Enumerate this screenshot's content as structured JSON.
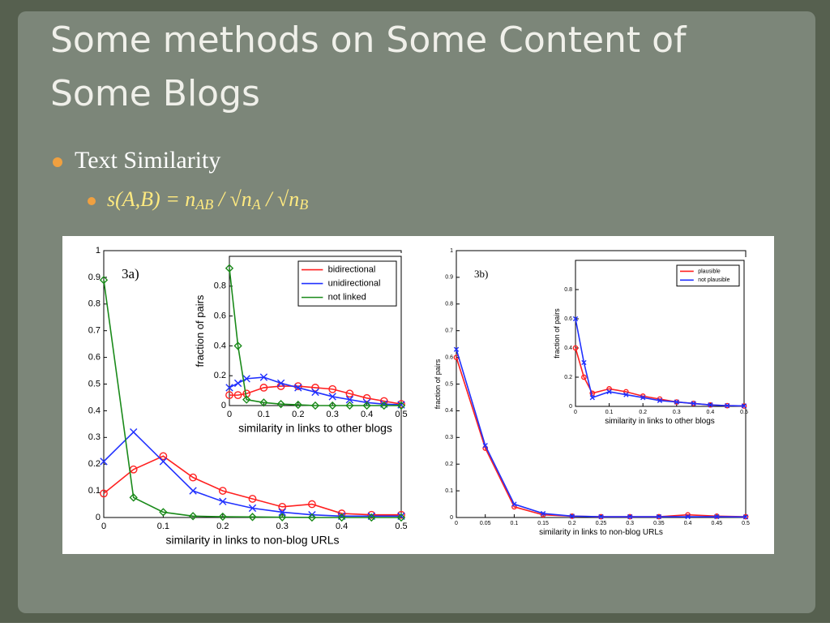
{
  "slide": {
    "title": "Some methods on Some Content of Some Blogs",
    "bullets": [
      "Text Similarity"
    ],
    "formula": [
      "s(A,B) = n",
      "AB",
      " / √n",
      "A",
      " / √n",
      "B"
    ]
  },
  "chart_data": [
    {
      "type": "line",
      "annotation": "3a)",
      "xlabel": "similarity in links to non-blog URLs",
      "xlim": [
        0,
        0.5
      ],
      "xticks": [
        0,
        0.1,
        0.2,
        0.3,
        0.4,
        0.5
      ],
      "ylim": [
        0,
        1
      ],
      "yticks": [
        0,
        0.1,
        0.2,
        0.3,
        0.4,
        0.5,
        0.6,
        0.7,
        0.8,
        0.9,
        1
      ],
      "x": [
        0,
        0.05,
        0.1,
        0.15,
        0.2,
        0.25,
        0.3,
        0.35,
        0.4,
        0.45,
        0.5
      ],
      "series": [
        {
          "color": "#ff2020",
          "marker": "o",
          "values": [
            0.09,
            0.18,
            0.23,
            0.15,
            0.1,
            0.07,
            0.04,
            0.05,
            0.015,
            0.01,
            0.01
          ]
        },
        {
          "color": "#2030ff",
          "marker": "x",
          "values": [
            0.21,
            0.32,
            0.21,
            0.1,
            0.06,
            0.035,
            0.02,
            0.01,
            0.005,
            0.005,
            0.005
          ]
        },
        {
          "color": "#1a8a1a",
          "marker": "d",
          "values": [
            0.89,
            0.075,
            0.02,
            0.005,
            0.003,
            0.002,
            0.001,
            0,
            0,
            0,
            0
          ]
        }
      ]
    },
    {
      "type": "line",
      "xlabel": "similarity in links to other blogs",
      "ylabel": "fraction of pairs",
      "xlim": [
        0,
        0.5
      ],
      "xticks": [
        0,
        0.1,
        0.2,
        0.3,
        0.4,
        0.5
      ],
      "ylim": [
        0,
        1
      ],
      "yticks": [
        0,
        0.2,
        0.4,
        0.6,
        0.8
      ],
      "x": [
        0,
        0.025,
        0.05,
        0.1,
        0.15,
        0.2,
        0.25,
        0.3,
        0.35,
        0.4,
        0.45,
        0.5
      ],
      "series": [
        {
          "name": "bidirectional",
          "color": "#ff2020",
          "marker": "o",
          "values": [
            0.07,
            0.07,
            0.08,
            0.12,
            0.13,
            0.13,
            0.12,
            0.11,
            0.08,
            0.05,
            0.03,
            0.01
          ]
        },
        {
          "name": "unidirectional",
          "color": "#2030ff",
          "marker": "x",
          "values": [
            0.12,
            0.15,
            0.18,
            0.19,
            0.15,
            0.12,
            0.09,
            0.06,
            0.04,
            0.02,
            0.01,
            0.005
          ]
        },
        {
          "name": "not linked",
          "color": "#1a8a1a",
          "marker": "d",
          "values": [
            0.92,
            0.4,
            0.04,
            0.02,
            0.01,
            0.005,
            0,
            0,
            0,
            0,
            0,
            0
          ]
        }
      ]
    },
    {
      "type": "line",
      "annotation": "3b)",
      "xlabel": "similarity in links to non-blog URLs",
      "ylabel": "fraction of pairs",
      "xlim": [
        0,
        0.5
      ],
      "xticks": [
        0,
        0.05,
        0.1,
        0.15,
        0.2,
        0.25,
        0.3,
        0.35,
        0.4,
        0.45,
        0.5
      ],
      "ylim": [
        0,
        1
      ],
      "yticks": [
        0,
        0.1,
        0.2,
        0.3,
        0.4,
        0.5,
        0.6,
        0.7,
        0.8,
        0.9,
        1
      ],
      "x": [
        0,
        0.05,
        0.1,
        0.15,
        0.2,
        0.25,
        0.3,
        0.35,
        0.4,
        0.45,
        0.5
      ],
      "series": [
        {
          "color": "#ff2020",
          "marker": "o",
          "values": [
            0.6,
            0.26,
            0.04,
            0.01,
            0.005,
            0.003,
            0.003,
            0.003,
            0.01,
            0.005,
            0.003
          ]
        },
        {
          "color": "#2030ff",
          "marker": "x",
          "values": [
            0.63,
            0.27,
            0.05,
            0.015,
            0.005,
            0.003,
            0.003,
            0.003,
            0.003,
            0.003,
            0.002
          ]
        }
      ]
    },
    {
      "type": "line",
      "xlabel": "similarity in links to other blogs",
      "ylabel": "fraction of pairs",
      "xlim": [
        0,
        0.5
      ],
      "xticks": [
        0,
        0.1,
        0.2,
        0.3,
        0.4,
        0.5
      ],
      "ylim": [
        0,
        1
      ],
      "yticks": [
        0,
        0.2,
        0.4,
        0.6,
        0.8
      ],
      "x": [
        0,
        0.025,
        0.05,
        0.1,
        0.15,
        0.2,
        0.25,
        0.3,
        0.35,
        0.4,
        0.45,
        0.5
      ],
      "series": [
        {
          "name": "plausible",
          "color": "#ff2020",
          "marker": "o",
          "values": [
            0.4,
            0.2,
            0.09,
            0.12,
            0.1,
            0.07,
            0.05,
            0.03,
            0.02,
            0.01,
            0.005,
            0.003
          ]
        },
        {
          "name": "not plausible",
          "color": "#2030ff",
          "marker": "x",
          "values": [
            0.6,
            0.3,
            0.06,
            0.1,
            0.08,
            0.06,
            0.04,
            0.03,
            0.02,
            0.01,
            0.005,
            0.003
          ]
        }
      ]
    }
  ]
}
